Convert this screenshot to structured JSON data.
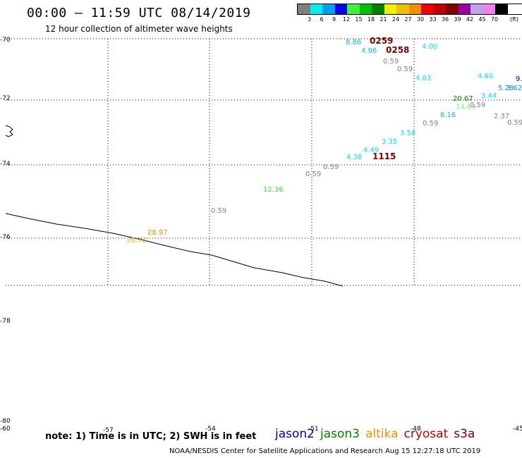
{
  "title": "00:00 — 11:59 UTC 08/14/2019",
  "subtitle": "12 hour collection of altimeter wave heights",
  "legend": {
    "colors": [
      "#808080",
      "#00f0f0",
      "#00a0f0",
      "#0000f0",
      "#40f040",
      "#00c000",
      "#008000",
      "#f0f000",
      "#f0c000",
      "#f09000",
      "#f00000",
      "#c00000",
      "#800000",
      "#a000a0",
      "#c0a0f0",
      "#f080f0",
      "#000000"
    ],
    "labels": [
      "3",
      "6",
      "9",
      "12",
      "15",
      "18",
      "21",
      "24",
      "27",
      "30",
      "33",
      "36",
      "39",
      "42",
      "45",
      "70"
    ],
    "unit": "(ft)"
  },
  "lat_labels": [
    "-70",
    "-72",
    "-74",
    "-76",
    "-78",
    "-80"
  ],
  "lon_labels": [
    "-60",
    "-57",
    "-54",
    "-51",
    "-48",
    "-45"
  ],
  "observations": [
    {
      "text": "8.86",
      "color": "#00c0e0"
    },
    {
      "text": "0259",
      "color": "#800000",
      "big": true
    },
    {
      "text": "4.96",
      "color": "#00c0e0"
    },
    {
      "text": "0258",
      "color": "#800000",
      "big": true
    },
    {
      "text": "4.00",
      "color": "#00e0f0"
    },
    {
      "text": "0.59",
      "color": "#808080"
    },
    {
      "text": "0.59",
      "color": "#808080"
    },
    {
      "text": "4.03",
      "color": "#00e0f0"
    },
    {
      "text": "4.60",
      "color": "#00e0f0"
    },
    {
      "text": "9.",
      "color": "#0000c0"
    },
    {
      "text": "5.28",
      "color": "#00a0e0"
    },
    {
      "text": "3.62",
      "color": "#00a0e0"
    },
    {
      "text": "3.44",
      "color": "#00e0f0"
    },
    {
      "text": "20.67",
      "color": "#008000"
    },
    {
      "text": "14.64",
      "color": "#80f080"
    },
    {
      "text": "0.59",
      "color": "#808080"
    },
    {
      "text": "6.16",
      "color": "#00c0e0"
    },
    {
      "text": "2.37",
      "color": "#808080"
    },
    {
      "text": "0.59",
      "color": "#808080"
    },
    {
      "text": "0.59",
      "color": "#808080"
    },
    {
      "text": "3.58",
      "color": "#00e0f0"
    },
    {
      "text": "3.35",
      "color": "#00e0f0"
    },
    {
      "text": "4.49",
      "color": "#00e0f0"
    },
    {
      "text": "4.38",
      "color": "#00e0f0"
    },
    {
      "text": "1115",
      "color": "#800000",
      "big": true
    },
    {
      "text": "0.59",
      "color": "#808080"
    },
    {
      "text": "0.59",
      "color": "#808080"
    },
    {
      "text": "12.36",
      "color": "#40e040"
    },
    {
      "text": "0.59",
      "color": "#808080"
    },
    {
      "text": "28.97",
      "color": "#e09000"
    },
    {
      "text": "26.72",
      "color": "#f0c000"
    }
  ],
  "note": "note: 1) Time is in UTC; 2) SWH is in feet",
  "satellites": [
    {
      "name": "jason2",
      "color": "#0000c0"
    },
    {
      "name": "jason3",
      "color": "#008000"
    },
    {
      "name": "altika",
      "color": "#f09000"
    },
    {
      "name": "cryosat",
      "color": "#c00000"
    },
    {
      "name": "s3a",
      "color": "#800000"
    }
  ],
  "credit": "NOAA/NESDIS Center for Satellite Applications and Research    Aug 15 12:27:18 UTC 2019"
}
